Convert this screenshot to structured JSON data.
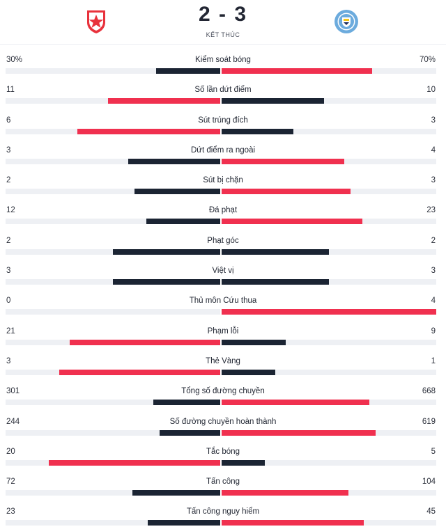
{
  "match": {
    "home_score": "2",
    "separator": "-",
    "away_score": "3",
    "status": "KẾT THÚC",
    "home_logo_icon": "red-star-crest-icon",
    "away_logo_icon": "manchester-city-crest-icon",
    "colors": {
      "home_primary": "#e8323c",
      "away_primary": "#6cabdd",
      "dark_bar": "#1b2433",
      "red_bar": "#f0304f"
    }
  },
  "stats": [
    {
      "label": "Kiểm soát bóng",
      "home": "30%",
      "away": "70%",
      "home_value": 30,
      "away_value": 70
    },
    {
      "label": "Số lần dứt điểm",
      "home": "11",
      "away": "10",
      "home_value": 11,
      "away_value": 10
    },
    {
      "label": "Sút trúng đích",
      "home": "6",
      "away": "3",
      "home_value": 6,
      "away_value": 3
    },
    {
      "label": "Dứt điểm ra ngoài",
      "home": "3",
      "away": "4",
      "home_value": 3,
      "away_value": 4
    },
    {
      "label": "Sút bị chặn",
      "home": "2",
      "away": "3",
      "home_value": 2,
      "away_value": 3
    },
    {
      "label": "Đá phạt",
      "home": "12",
      "away": "23",
      "home_value": 12,
      "away_value": 23
    },
    {
      "label": "Phạt góc",
      "home": "2",
      "away": "2",
      "home_value": 2,
      "away_value": 2
    },
    {
      "label": "Việt vị",
      "home": "3",
      "away": "3",
      "home_value": 3,
      "away_value": 3
    },
    {
      "label": "Thủ môn Cứu thua",
      "home": "0",
      "away": "4",
      "home_value": 0,
      "away_value": 4
    },
    {
      "label": "Phạm lỗi",
      "home": "21",
      "away": "9",
      "home_value": 21,
      "away_value": 9
    },
    {
      "label": "Thẻ Vàng",
      "home": "3",
      "away": "1",
      "home_value": 3,
      "away_value": 1
    },
    {
      "label": "Tổng số đường chuyền",
      "home": "301",
      "away": "668",
      "home_value": 301,
      "away_value": 668
    },
    {
      "label": "Số đường chuyền hoàn thành",
      "home": "244",
      "away": "619",
      "home_value": 244,
      "away_value": 619
    },
    {
      "label": "Tắc bóng",
      "home": "20",
      "away": "5",
      "home_value": 20,
      "away_value": 5
    },
    {
      "label": "Tấn công",
      "home": "72",
      "away": "104",
      "home_value": 72,
      "away_value": 104
    },
    {
      "label": "Tấn công nguy hiểm",
      "home": "23",
      "away": "45",
      "home_value": 23,
      "away_value": 45
    }
  ]
}
